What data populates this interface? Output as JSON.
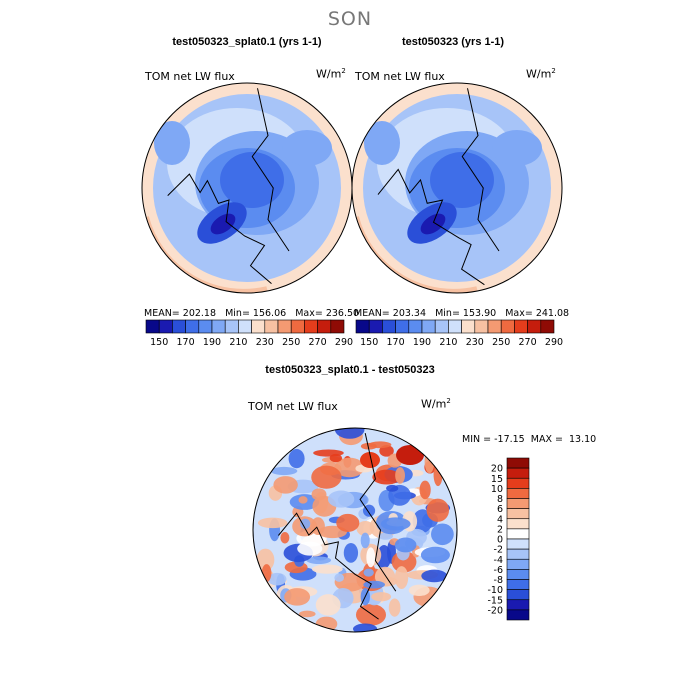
{
  "figure": {
    "title": "SON"
  },
  "panels": [
    {
      "title": "test050323_splat0.1 (yrs 1-1)",
      "variable": "TOM net LW flux",
      "units": "W/m",
      "units_exp": "2",
      "stats": "MEAN= 202.18   Min= 156.06   Max= 236.50"
    },
    {
      "title": "test050323 (yrs 1-1)",
      "variable": "TOM net LW flux",
      "units": "W/m",
      "units_exp": "2",
      "stats": "MEAN= 203.34   Min= 153.90   Max= 241.08"
    },
    {
      "title": "test050323_splat0.1 - test050323",
      "variable": "TOM net LW flux",
      "units": "W/m",
      "units_exp": "2",
      "stats": "MIN = -17.15  MAX =  13.10"
    }
  ],
  "chart_data": [
    {
      "type": "heatmap",
      "projection": "north polar stereographic",
      "title": "test050323_splat0.1 (yrs 1-1)",
      "variable": "TOM net LW flux",
      "units": "W/m^2",
      "mean": 202.18,
      "min": 156.06,
      "max": 236.5,
      "colorbar": {
        "orientation": "horizontal",
        "levels": [
          150,
          160,
          170,
          180,
          190,
          200,
          210,
          220,
          230,
          240,
          250,
          260,
          270,
          280,
          290
        ],
        "tick_labels": [
          "150",
          "170",
          "190",
          "210",
          "230",
          "250",
          "270",
          "290"
        ],
        "colors": [
          "#08088a",
          "#1a1ab0",
          "#2a4fd8",
          "#3f6ee8",
          "#5b8cf0",
          "#7fa8f5",
          "#a7c4f8",
          "#cfe0fb",
          "#fbe0cd",
          "#f7c1a2",
          "#f49a72",
          "#ef6a40",
          "#e53d1c",
          "#c51d0d",
          "#8f0b05"
        ]
      }
    },
    {
      "type": "heatmap",
      "projection": "north polar stereographic",
      "title": "test050323 (yrs 1-1)",
      "variable": "TOM net LW flux",
      "units": "W/m^2",
      "mean": 203.34,
      "min": 153.9,
      "max": 241.08,
      "colorbar": {
        "orientation": "horizontal",
        "levels": [
          150,
          160,
          170,
          180,
          190,
          200,
          210,
          220,
          230,
          240,
          250,
          260,
          270,
          280,
          290
        ],
        "tick_labels": [
          "150",
          "170",
          "190",
          "210",
          "230",
          "250",
          "270",
          "290"
        ],
        "colors": [
          "#08088a",
          "#1a1ab0",
          "#2a4fd8",
          "#3f6ee8",
          "#5b8cf0",
          "#7fa8f5",
          "#a7c4f8",
          "#cfe0fb",
          "#fbe0cd",
          "#f7c1a2",
          "#f49a72",
          "#ef6a40",
          "#e53d1c",
          "#c51d0d",
          "#8f0b05"
        ]
      }
    },
    {
      "type": "heatmap",
      "projection": "north polar stereographic",
      "title": "test050323_splat0.1 - test050323",
      "variable": "TOM net LW flux",
      "units": "W/m^2",
      "min": -17.15,
      "max": 13.1,
      "colorbar": {
        "orientation": "vertical",
        "tick_labels": [
          "20",
          "15",
          "10",
          "8",
          "6",
          "4",
          "2",
          "0",
          "-2",
          "-4",
          "-6",
          "-8",
          "-10",
          "-15",
          "-20"
        ],
        "colors": [
          "#8f0b05",
          "#c51d0d",
          "#e53d1c",
          "#ef6a40",
          "#f49a72",
          "#f7c1a2",
          "#fbe0cd",
          "#ffffff",
          "#cfe0fb",
          "#a7c4f8",
          "#7fa8f5",
          "#5b8cf0",
          "#3f6ee8",
          "#2a4fd8",
          "#1a1ab0",
          "#08088a"
        ]
      }
    }
  ]
}
